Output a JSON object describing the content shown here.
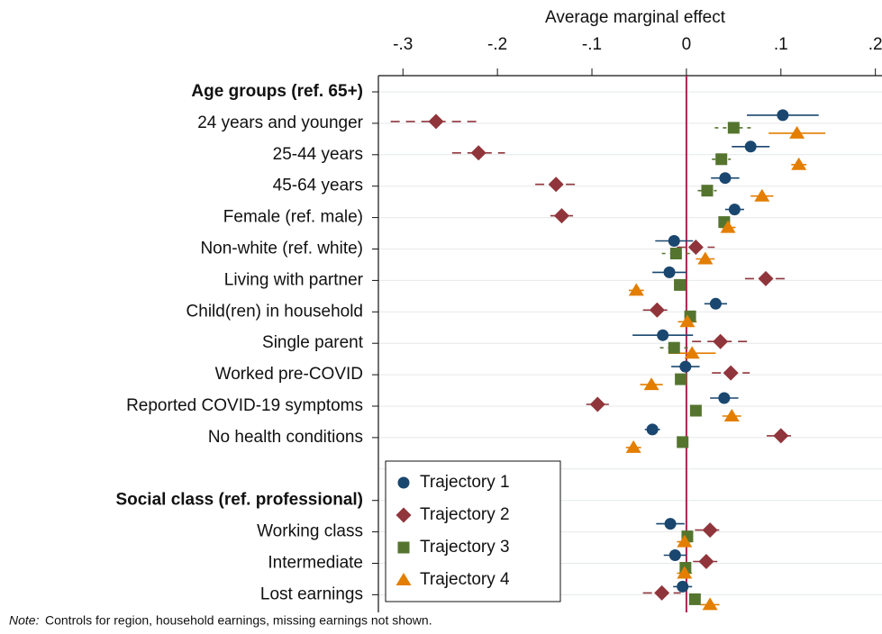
{
  "chart_data": {
    "type": "coefplot",
    "x_label": "Average marginal effect",
    "note_label": "Note:",
    "note": "Controls for region, household earnings, missing earnings not shown.",
    "categories": [
      "Age groups (ref. 65+)",
      "24 years and younger",
      "25-44 years",
      "45-64 years",
      "Female (ref. male)",
      "Non-white (ref. white)",
      "Living with partner",
      "Child(ren) in household",
      "Single parent",
      "Worked pre-COVID",
      "Reported COVID-19 symptoms",
      "No health conditions",
      null,
      "Social class (ref. professional)",
      "Working class",
      "Intermediate",
      "Lost earnings"
    ],
    "xlim": [
      -0.326,
      0.207
    ],
    "xticks": [
      {
        "value": -0.3,
        "label": "-.3"
      },
      {
        "value": -0.2,
        "label": "-.2"
      },
      {
        "value": -0.1,
        "label": "-.1"
      },
      0,
      {
        "value": 0.1,
        "label": ".1"
      },
      {
        "value": 0.2,
        "label": ".2"
      }
    ],
    "reference_line": 0,
    "legend_position": "lower left",
    "series": [
      {
        "name": "Trajectory 1",
        "color": "#1a476f",
        "marker": "circle",
        "line_style": "solid",
        "values": [
          null,
          0.102,
          0.068,
          0.041,
          0.051,
          -0.013,
          -0.018,
          0.031,
          -0.025,
          -0.001,
          0.04,
          -0.036,
          null,
          null,
          -0.017,
          -0.012,
          -0.004
        ],
        "errors": [
          null,
          0.038,
          0.02,
          0.015,
          0.01,
          0.02,
          0.018,
          0.012,
          0.032,
          0.015,
          0.015,
          0.008,
          null,
          null,
          0.015,
          0.012,
          0.01
        ]
      },
      {
        "name": "Trajectory 2",
        "color": "#90353b",
        "marker": "diamond",
        "line_style": "dashed",
        "values": [
          null,
          -0.265,
          -0.22,
          -0.138,
          -0.132,
          0.01,
          0.084,
          -0.031,
          0.036,
          0.047,
          -0.094,
          0.1,
          null,
          null,
          0.025,
          0.021,
          -0.026
        ],
        "errors": [
          null,
          0.048,
          0.028,
          0.022,
          0.012,
          0.02,
          0.022,
          0.015,
          0.03,
          0.02,
          0.012,
          0.015,
          null,
          null,
          0.016,
          0.014,
          0.02
        ]
      },
      {
        "name": "Trajectory 3",
        "color": "#55752f",
        "marker": "square",
        "line_style": "dotted",
        "values": [
          null,
          0.05,
          0.037,
          0.022,
          0.04,
          -0.011,
          -0.007,
          0.004,
          -0.013,
          -0.006,
          0.01,
          -0.004,
          null,
          null,
          0.001,
          -0.001,
          0.009
        ],
        "errors": [
          null,
          0.02,
          0.01,
          0.01,
          0.006,
          0.015,
          0.006,
          0.006,
          0.015,
          0.005,
          0.004,
          0.004,
          null,
          null,
          0.005,
          0.005,
          0.005
        ]
      },
      {
        "name": "Trajectory 4",
        "color": "#e37e00",
        "marker": "triangle",
        "line_style": "solid",
        "values": [
          null,
          0.117,
          0.119,
          0.08,
          0.044,
          0.02,
          -0.053,
          0.001,
          0.006,
          -0.037,
          0.048,
          -0.056,
          null,
          null,
          -0.002,
          -0.002,
          0.025
        ],
        "errors": [
          null,
          0.03,
          0.008,
          0.012,
          0.008,
          0.01,
          0.008,
          0.01,
          0.025,
          0.012,
          0.01,
          0.008,
          null,
          null,
          0.008,
          0.008,
          0.01
        ]
      }
    ]
  }
}
